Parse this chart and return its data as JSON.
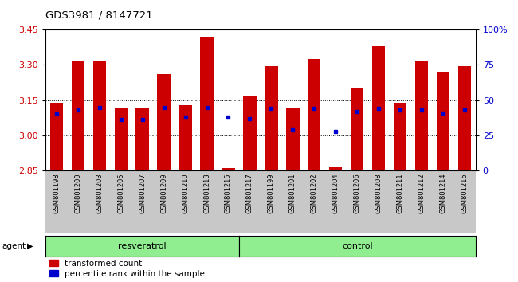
{
  "title": "GDS3981 / 8147721",
  "samples": [
    "GSM801198",
    "GSM801200",
    "GSM801203",
    "GSM801205",
    "GSM801207",
    "GSM801209",
    "GSM801210",
    "GSM801213",
    "GSM801215",
    "GSM801217",
    "GSM801199",
    "GSM801201",
    "GSM801202",
    "GSM801204",
    "GSM801206",
    "GSM801208",
    "GSM801211",
    "GSM801212",
    "GSM801214",
    "GSM801216"
  ],
  "transformed_count": [
    3.14,
    3.32,
    3.32,
    3.12,
    3.12,
    3.26,
    3.13,
    3.42,
    2.862,
    3.17,
    3.295,
    3.12,
    3.325,
    2.863,
    3.2,
    3.38,
    3.14,
    3.32,
    3.27,
    3.295
  ],
  "percentile_rank": [
    40,
    43,
    45,
    36,
    36,
    45,
    38,
    45,
    38,
    37,
    44,
    29,
    44,
    28,
    42,
    44,
    43,
    43,
    41,
    43
  ],
  "resveratrol_count": 9,
  "ymin": 2.85,
  "ymax": 3.45,
  "yticks": [
    2.85,
    3.0,
    3.15,
    3.3,
    3.45
  ],
  "right_yticks": [
    0,
    25,
    50,
    75,
    100
  ],
  "right_yticklabels": [
    "0",
    "25",
    "50",
    "75",
    "100%"
  ],
  "bar_color": "#cc0000",
  "blue_color": "#0000cc",
  "green_color": "#90ee90",
  "xticklabel_bg": "#c8c8c8",
  "agent_label": "agent",
  "resveratrol_label": "resveratrol",
  "control_label": "control",
  "legend_red_label": "transformed count",
  "legend_blue_label": "percentile rank within the sample",
  "tick_color_left": "#cc0000",
  "tick_color_right": "#0000cc",
  "title_color": "#000000"
}
